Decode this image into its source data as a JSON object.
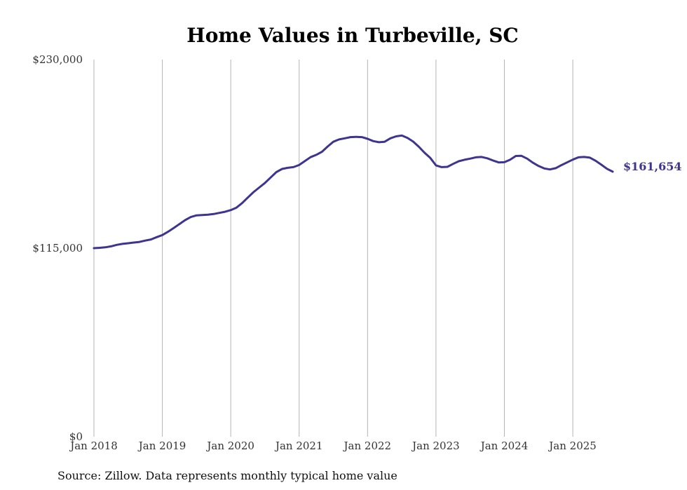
{
  "chart_data": {
    "type": "line",
    "title": "Home Values in Turbeville, SC",
    "source": "Source: Zillow. Data represents monthly typical home value",
    "ylim": [
      0,
      230000
    ],
    "yticks": [
      {
        "value": 0,
        "label": "$0"
      },
      {
        "value": 115000,
        "label": "$115,000"
      },
      {
        "value": 230000,
        "label": "$230,000"
      }
    ],
    "xlim": [
      "2018-01",
      "2025-08"
    ],
    "xticks": [
      {
        "value": "2018-01",
        "label": "Jan 2018"
      },
      {
        "value": "2019-01",
        "label": "Jan 2019"
      },
      {
        "value": "2020-01",
        "label": "Jan 2020"
      },
      {
        "value": "2021-01",
        "label": "Jan 2021"
      },
      {
        "value": "2022-01",
        "label": "Jan 2022"
      },
      {
        "value": "2023-01",
        "label": "Jan 2023"
      },
      {
        "value": "2024-01",
        "label": "Jan 2024"
      },
      {
        "value": "2025-01",
        "label": "Jan 2025"
      }
    ],
    "grid": "vertical",
    "line_color": "#3d3590",
    "end_label": "$161,654",
    "series": [
      {
        "points": [
          [
            "2018-01",
            115000
          ],
          [
            "2018-02",
            115200
          ],
          [
            "2018-03",
            115500
          ],
          [
            "2018-04",
            116100
          ],
          [
            "2018-05",
            117000
          ],
          [
            "2018-06",
            117600
          ],
          [
            "2018-07",
            118000
          ],
          [
            "2018-08",
            118400
          ],
          [
            "2018-09",
            118800
          ],
          [
            "2018-10",
            119600
          ],
          [
            "2018-11",
            120300
          ],
          [
            "2018-12",
            121700
          ],
          [
            "2019-01",
            123000
          ],
          [
            "2019-02",
            125000
          ],
          [
            "2019-03",
            127300
          ],
          [
            "2019-04",
            129700
          ],
          [
            "2019-05",
            132100
          ],
          [
            "2019-06",
            134000
          ],
          [
            "2019-07",
            135000
          ],
          [
            "2019-08",
            135200
          ],
          [
            "2019-09",
            135400
          ],
          [
            "2019-10",
            135800
          ],
          [
            "2019-11",
            136500
          ],
          [
            "2019-12",
            137200
          ],
          [
            "2020-01",
            138200
          ],
          [
            "2020-02",
            139700
          ],
          [
            "2020-03",
            142500
          ],
          [
            "2020-04",
            145900
          ],
          [
            "2020-05",
            149200
          ],
          [
            "2020-06",
            152000
          ],
          [
            "2020-07",
            154800
          ],
          [
            "2020-08",
            158100
          ],
          [
            "2020-09",
            161400
          ],
          [
            "2020-10",
            163300
          ],
          [
            "2020-11",
            164000
          ],
          [
            "2020-12",
            164400
          ],
          [
            "2021-01",
            165700
          ],
          [
            "2021-02",
            168100
          ],
          [
            "2021-03",
            170500
          ],
          [
            "2021-04",
            171900
          ],
          [
            "2021-05",
            173800
          ],
          [
            "2021-06",
            177000
          ],
          [
            "2021-07",
            179900
          ],
          [
            "2021-08",
            181300
          ],
          [
            "2021-09",
            182000
          ],
          [
            "2021-10",
            182700
          ],
          [
            "2021-11",
            182900
          ],
          [
            "2021-12",
            182700
          ],
          [
            "2022-01",
            181700
          ],
          [
            "2022-02",
            180300
          ],
          [
            "2022-03",
            179600
          ],
          [
            "2022-04",
            179900
          ],
          [
            "2022-05",
            182000
          ],
          [
            "2022-06",
            183200
          ],
          [
            "2022-07",
            183700
          ],
          [
            "2022-08",
            182200
          ],
          [
            "2022-09",
            180000
          ],
          [
            "2022-10",
            176800
          ],
          [
            "2022-11",
            173200
          ],
          [
            "2022-12",
            170000
          ],
          [
            "2023-01",
            165500
          ],
          [
            "2023-02",
            164400
          ],
          [
            "2023-03",
            164600
          ],
          [
            "2023-04",
            166400
          ],
          [
            "2023-05",
            168000
          ],
          [
            "2023-06",
            168900
          ],
          [
            "2023-07",
            169600
          ],
          [
            "2023-08",
            170400
          ],
          [
            "2023-09",
            170600
          ],
          [
            "2023-10",
            169800
          ],
          [
            "2023-11",
            168500
          ],
          [
            "2023-12",
            167300
          ],
          [
            "2024-01",
            167400
          ],
          [
            "2024-02",
            168900
          ],
          [
            "2024-03",
            171200
          ],
          [
            "2024-04",
            171300
          ],
          [
            "2024-05",
            169600
          ],
          [
            "2024-06",
            167100
          ],
          [
            "2024-07",
            165100
          ],
          [
            "2024-08",
            163600
          ],
          [
            "2024-09",
            163000
          ],
          [
            "2024-10",
            163800
          ],
          [
            "2024-11",
            165600
          ],
          [
            "2024-12",
            167300
          ],
          [
            "2025-01",
            169000
          ],
          [
            "2025-02",
            170400
          ],
          [
            "2025-03",
            170600
          ],
          [
            "2025-04",
            170200
          ],
          [
            "2025-05",
            168300
          ],
          [
            "2025-06",
            165900
          ],
          [
            "2025-07",
            163400
          ],
          [
            "2025-08",
            161654
          ]
        ]
      }
    ]
  }
}
